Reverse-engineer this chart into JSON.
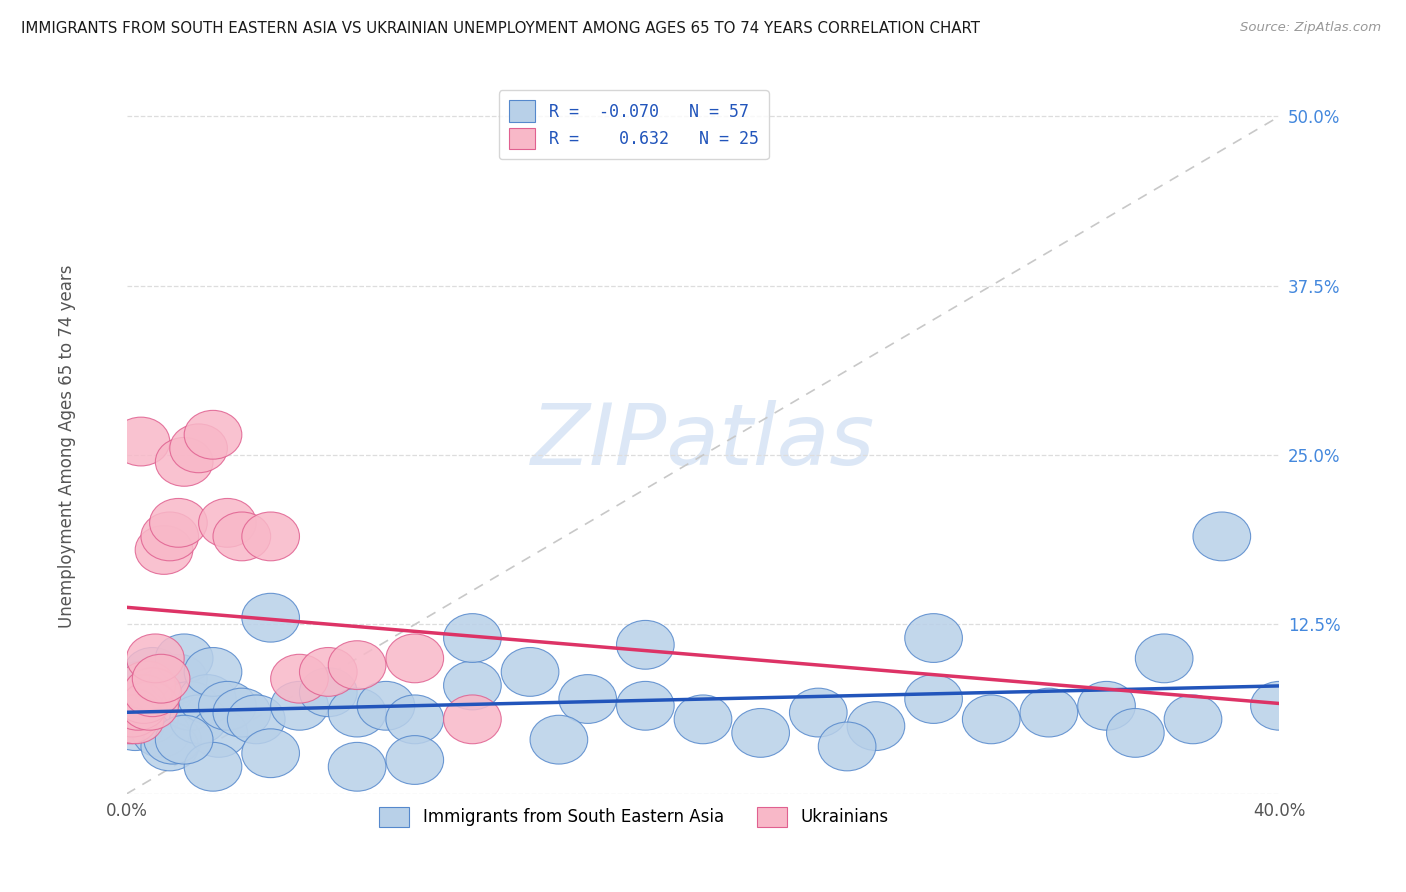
{
  "title": "IMMIGRANTS FROM SOUTH EASTERN ASIA VS UKRAINIAN UNEMPLOYMENT AMONG AGES 65 TO 74 YEARS CORRELATION CHART",
  "source": "Source: ZipAtlas.com",
  "ylabel": "Unemployment Among Ages 65 to 74 years",
  "xlim": [
    0.0,
    0.4
  ],
  "ylim": [
    0.0,
    0.52
  ],
  "yticks": [
    0.0,
    0.125,
    0.25,
    0.375,
    0.5
  ],
  "ytick_labels": [
    "",
    "12.5%",
    "25.0%",
    "37.5%",
    "50.0%"
  ],
  "xtick_labels": [
    "0.0%",
    "",
    "",
    "",
    "40.0%"
  ],
  "xticks": [
    0.0,
    0.1,
    0.2,
    0.3,
    0.4
  ],
  "legend_R1": "-0.070",
  "legend_N1": "57",
  "legend_R2": "0.632",
  "legend_N2": "25",
  "legend_label1": "Immigrants from South Eastern Asia",
  "legend_label2": "Ukrainians",
  "blue_face": "#b8d0e8",
  "blue_edge": "#5588cc",
  "pink_face": "#f8b8c8",
  "pink_edge": "#e06090",
  "blue_trend": "#2255bb",
  "pink_trend": "#dd3366",
  "blue_scatter_x": [
    0.001,
    0.002,
    0.003,
    0.004,
    0.005,
    0.006,
    0.007,
    0.008,
    0.009,
    0.01,
    0.012,
    0.013,
    0.015,
    0.016,
    0.018,
    0.02,
    0.022,
    0.025,
    0.028,
    0.03,
    0.032,
    0.035,
    0.04,
    0.045,
    0.05,
    0.06,
    0.07,
    0.08,
    0.09,
    0.1,
    0.12,
    0.14,
    0.16,
    0.18,
    0.2,
    0.22,
    0.24,
    0.26,
    0.28,
    0.3,
    0.32,
    0.34,
    0.35,
    0.36,
    0.37,
    0.38,
    0.25,
    0.15,
    0.08,
    0.1,
    0.05,
    0.03,
    0.02,
    0.18,
    0.12,
    0.28,
    0.4
  ],
  "blue_scatter_y": [
    0.06,
    0.055,
    0.05,
    0.07,
    0.08,
    0.06,
    0.065,
    0.055,
    0.09,
    0.07,
    0.045,
    0.075,
    0.035,
    0.04,
    0.085,
    0.1,
    0.065,
    0.055,
    0.07,
    0.09,
    0.045,
    0.065,
    0.06,
    0.055,
    0.13,
    0.065,
    0.075,
    0.06,
    0.065,
    0.055,
    0.08,
    0.09,
    0.07,
    0.065,
    0.055,
    0.045,
    0.06,
    0.05,
    0.07,
    0.055,
    0.06,
    0.065,
    0.045,
    0.1,
    0.055,
    0.19,
    0.035,
    0.04,
    0.02,
    0.025,
    0.03,
    0.02,
    0.04,
    0.11,
    0.115,
    0.115,
    0.065
  ],
  "pink_scatter_x": [
    0.001,
    0.002,
    0.003,
    0.004,
    0.005,
    0.006,
    0.007,
    0.008,
    0.009,
    0.01,
    0.012,
    0.013,
    0.015,
    0.018,
    0.02,
    0.025,
    0.03,
    0.035,
    0.04,
    0.05,
    0.06,
    0.07,
    0.08,
    0.1,
    0.12
  ],
  "pink_scatter_y": [
    0.055,
    0.06,
    0.055,
    0.065,
    0.26,
    0.07,
    0.08,
    0.065,
    0.075,
    0.1,
    0.085,
    0.18,
    0.19,
    0.2,
    0.245,
    0.255,
    0.265,
    0.2,
    0.19,
    0.19,
    0.085,
    0.09,
    0.095,
    0.1,
    0.055
  ],
  "watermark": "ZIPatlas",
  "bg_color": "#ffffff",
  "grid_color": "#dddddd"
}
